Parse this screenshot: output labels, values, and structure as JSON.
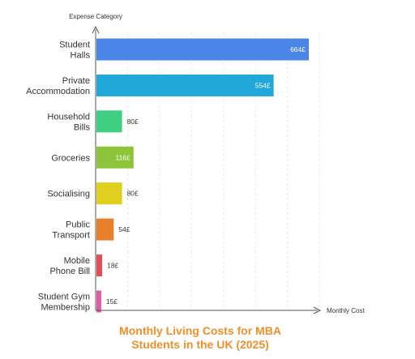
{
  "chart_data": {
    "type": "bar",
    "orientation": "horizontal",
    "title_lines": [
      "Monthly Living Costs for MBA",
      "Students in the UK (2025)"
    ],
    "xlabel": "Monthly Cost",
    "ylabel": "Expense Category",
    "xlim": [
      0,
      700
    ],
    "grid": true,
    "legend": "none",
    "value_suffix": "£",
    "categories": [
      [
        "Student",
        "Halls"
      ],
      [
        "Private",
        "Accommodation"
      ],
      [
        "Household",
        "Bills"
      ],
      [
        "Groceries"
      ],
      [
        "Socialising"
      ],
      [
        "Public",
        "Transport"
      ],
      [
        "Mobile",
        "Phone Bill"
      ],
      [
        "Student Gym",
        "Membership"
      ]
    ],
    "values": [
      664,
      554,
      80,
      116,
      80,
      54,
      18,
      15
    ],
    "colors": [
      "#4a86e8",
      "#22a8d8",
      "#3ecf83",
      "#8dc43a",
      "#e0cf1e",
      "#e87f2a",
      "#e0505a",
      "#e05aa8"
    ]
  }
}
